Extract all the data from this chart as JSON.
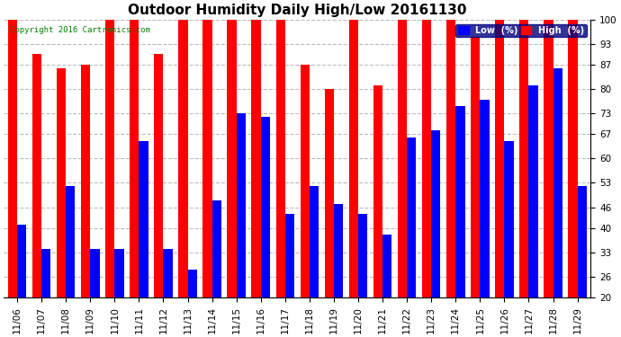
{
  "title": "Outdoor Humidity Daily High/Low 20161130",
  "copyright": "Copyright 2016 Cartronics.com",
  "dates": [
    "11/06",
    "11/07",
    "11/08",
    "11/09",
    "11/10",
    "11/11",
    "11/12",
    "11/13",
    "11/14",
    "11/15",
    "11/16",
    "11/17",
    "11/18",
    "11/19",
    "11/20",
    "11/21",
    "11/22",
    "11/23",
    "11/24",
    "11/25",
    "11/26",
    "11/27",
    "11/28",
    "11/29"
  ],
  "high": [
    100,
    90,
    86,
    87,
    100,
    100,
    90,
    100,
    100,
    100,
    100,
    100,
    87,
    80,
    100,
    81,
    100,
    100,
    100,
    95,
    100,
    100,
    100,
    100
  ],
  "low": [
    41,
    34,
    52,
    34,
    34,
    65,
    34,
    28,
    48,
    73,
    72,
    44,
    52,
    47,
    44,
    38,
    66,
    68,
    75,
    77,
    65,
    81,
    86,
    52
  ],
  "high_color": "#FF0000",
  "low_color": "#0000FF",
  "background_color": "#FFFFFF",
  "grid_color": "#BBBBBB",
  "ylim_min": 20,
  "ylim_max": 100,
  "yticks": [
    20,
    26,
    33,
    40,
    46,
    53,
    60,
    67,
    73,
    80,
    87,
    93,
    100
  ],
  "bar_width": 0.38,
  "title_fontsize": 11,
  "tick_fontsize": 7.5,
  "copyright_fontsize": 6.5,
  "legend_low_label": "Low  (%)",
  "legend_high_label": "High  (%)"
}
